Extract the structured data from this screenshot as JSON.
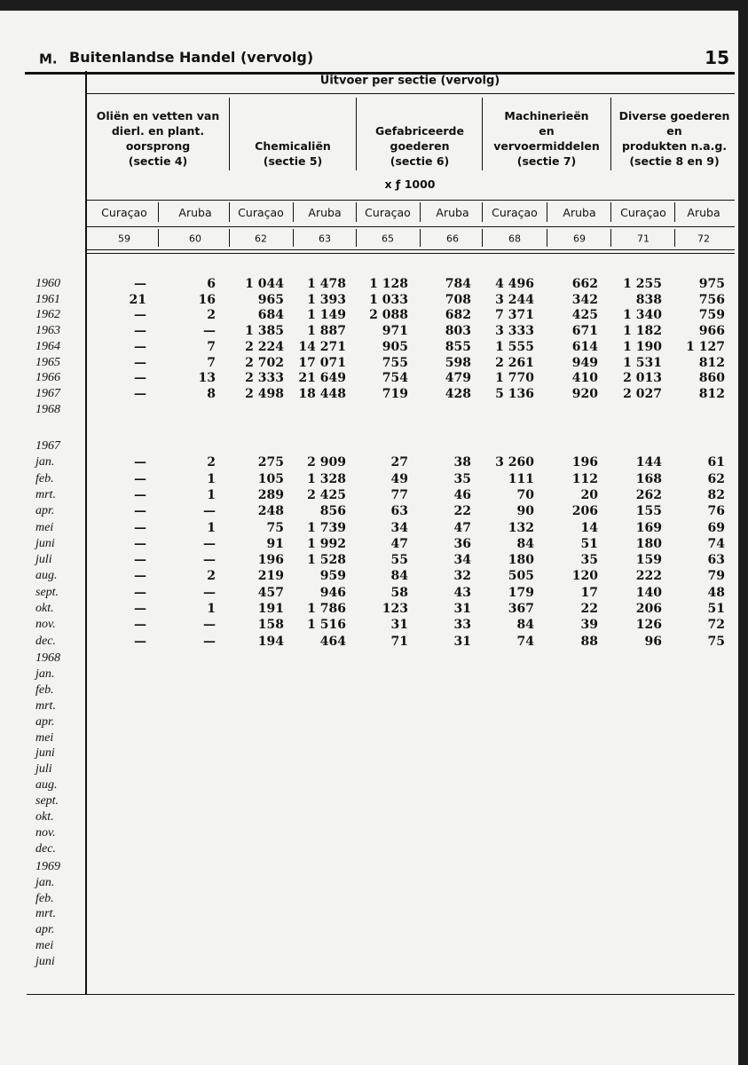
{
  "header": {
    "section": "M.",
    "title": "Buitenlandse Handel (vervolg)",
    "page": "15"
  },
  "table": {
    "super_header": "Uitvoer per sectie (vervolg)",
    "groups": [
      {
        "lines": [
          "Oliën en vetten van",
          "dierl. en plant.",
          "oorsprong",
          "(sectie 4)"
        ]
      },
      {
        "lines": [
          "Chemicaliën",
          "(sectie 5)"
        ]
      },
      {
        "lines": [
          "Gefabriceerde",
          "goederen",
          "(sectie 6)"
        ]
      },
      {
        "lines": [
          "Machinerieën",
          "en",
          "vervoermiddelen",
          "(sectie 7)"
        ]
      },
      {
        "lines": [
          "Diverse goederen",
          "en",
          "produkten n.a.g.",
          "(sectie 8 en 9)"
        ]
      }
    ],
    "unit": "x ƒ 1000",
    "columns": [
      "Curaçao",
      "Aruba",
      "Curaçao",
      "Aruba",
      "Curaçao",
      "Aruba",
      "Curaçao",
      "Aruba",
      "Curaçao",
      "Aruba"
    ],
    "column_numbers": [
      59,
      60,
      62,
      63,
      65,
      66,
      68,
      69,
      71,
      72
    ],
    "annual": [
      {
        "label": "1960",
        "cells": [
          "—",
          "6",
          "1 044",
          "1 478",
          "1 128",
          "784",
          "4 496",
          "662",
          "1 255",
          "975"
        ]
      },
      {
        "label": "1961",
        "cells": [
          "21",
          "16",
          "965",
          "1 393",
          "1 033",
          "708",
          "3 244",
          "342",
          "838",
          "756"
        ]
      },
      {
        "label": "1962",
        "cells": [
          "—",
          "2",
          "684",
          "1 149",
          "2 088",
          "682",
          "7 371",
          "425",
          "1 340",
          "759"
        ]
      },
      {
        "label": "1963",
        "cells": [
          "—",
          "—",
          "1 385",
          "1 887",
          "971",
          "803",
          "3 333",
          "671",
          "1 182",
          "966"
        ]
      },
      {
        "label": "1964",
        "cells": [
          "—",
          "7",
          "2 224",
          "14 271",
          "905",
          "855",
          "1 555",
          "614",
          "1 190",
          "1 127"
        ]
      },
      {
        "label": "1965",
        "cells": [
          "—",
          "7",
          "2 702",
          "17 071",
          "755",
          "598",
          "2 261",
          "949",
          "1 531",
          "812"
        ]
      },
      {
        "label": "1966",
        "cells": [
          "—",
          "13",
          "2 333",
          "21 649",
          "754",
          "479",
          "1 770",
          "410",
          "2 013",
          "860"
        ]
      },
      {
        "label": "1967",
        "cells": [
          "—",
          "8",
          "2 498",
          "18 448",
          "719",
          "428",
          "5 136",
          "920",
          "2 027",
          "812"
        ]
      },
      {
        "label": "1968"
      }
    ],
    "monthly": [
      {
        "year": "1967",
        "months": [
          {
            "label": "jan.",
            "cells": [
              "—",
              "2",
              "275",
              "2 909",
              "27",
              "38",
              "3 260",
              "196",
              "144",
              "61"
            ]
          },
          {
            "label": "feb.",
            "cells": [
              "—",
              "1",
              "105",
              "1 328",
              "49",
              "35",
              "111",
              "112",
              "168",
              "62"
            ]
          },
          {
            "label": "mrt.",
            "cells": [
              "—",
              "1",
              "289",
              "2 425",
              "77",
              "46",
              "70",
              "20",
              "262",
              "82"
            ]
          },
          {
            "label": "apr.",
            "cells": [
              "—",
              "—",
              "248",
              "856",
              "63",
              "22",
              "90",
              "206",
              "155",
              "76"
            ]
          },
          {
            "label": "mei",
            "cells": [
              "—",
              "1",
              "75",
              "1 739",
              "34",
              "47",
              "132",
              "14",
              "169",
              "69"
            ]
          },
          {
            "label": "juni",
            "cells": [
              "—",
              "—",
              "91",
              "1 992",
              "47",
              "36",
              "84",
              "51",
              "180",
              "74"
            ]
          },
          {
            "label": "juli",
            "cells": [
              "—",
              "—",
              "196",
              "1 528",
              "55",
              "34",
              "180",
              "35",
              "159",
              "63"
            ]
          },
          {
            "label": "aug.",
            "cells": [
              "—",
              "2",
              "219",
              "959",
              "84",
              "32",
              "505",
              "120",
              "222",
              "79"
            ]
          },
          {
            "label": "sept.",
            "cells": [
              "—",
              "—",
              "457",
              "946",
              "58",
              "43",
              "179",
              "17",
              "140",
              "48"
            ]
          },
          {
            "label": "okt.",
            "cells": [
              "—",
              "1",
              "191",
              "1 786",
              "123",
              "31",
              "367",
              "22",
              "206",
              "51"
            ]
          },
          {
            "label": "nov.",
            "cells": [
              "—",
              "—",
              "158",
              "1 516",
              "31",
              "33",
              "84",
              "39",
              "126",
              "72"
            ]
          },
          {
            "label": "dec.",
            "cells": [
              "—",
              "—",
              "194",
              "464",
              "71",
              "31",
              "74",
              "88",
              "96",
              "75"
            ]
          }
        ]
      },
      {
        "year": "1968",
        "months": [
          {
            "label": "jan."
          },
          {
            "label": "feb."
          },
          {
            "label": "mrt."
          },
          {
            "label": "apr."
          },
          {
            "label": "mei"
          },
          {
            "label": "juni"
          },
          {
            "label": "juli"
          },
          {
            "label": "aug."
          },
          {
            "label": "sept."
          },
          {
            "label": "okt."
          },
          {
            "label": "nov."
          },
          {
            "label": "dec."
          }
        ]
      },
      {
        "year": "1969",
        "months": [
          {
            "label": "jan."
          },
          {
            "label": "feb."
          },
          {
            "label": "mrt."
          },
          {
            "label": "apr."
          },
          {
            "label": "mei"
          },
          {
            "label": "juni"
          }
        ]
      }
    ]
  }
}
